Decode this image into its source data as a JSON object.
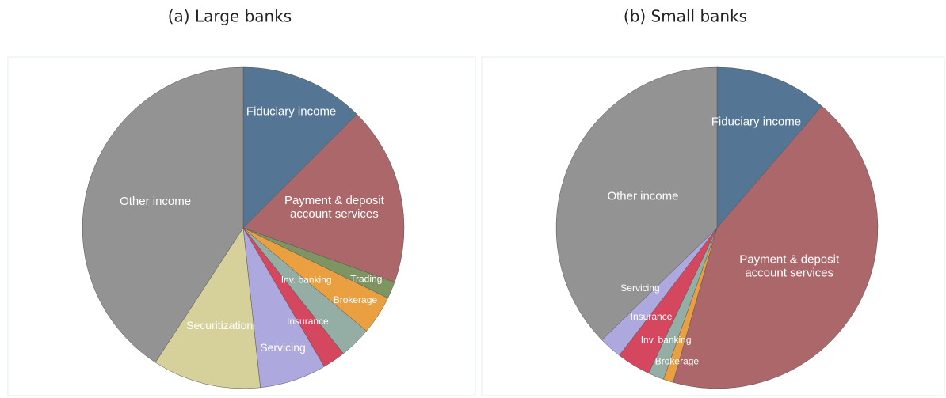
{
  "chart_data": [
    {
      "type": "pie",
      "title": "(a) Large banks",
      "categories": [
        "Fiduciary income",
        "Payment & deposit account services",
        "Trading",
        "Brokerage",
        "Inv. banking",
        "Insurance",
        "Servicing",
        "Securitization",
        "Other income"
      ],
      "values": [
        12.5,
        18,
        1.7,
        3.9,
        3.2,
        2.3,
        6.7,
        10.9,
        40.8
      ],
      "colors": [
        "#547593",
        "#ac676a",
        "#7e9561",
        "#eaa040",
        "#95aea5",
        "#d4475f",
        "#ada8dd",
        "#d6d19b",
        "#939393"
      ]
    },
    {
      "type": "pie",
      "title": "(b) Small banks",
      "categories": [
        "Fiduciary income",
        "Payment & deposit account services",
        "Brokerage",
        "Inv. banking",
        "Insurance",
        "Servicing",
        "Other income"
      ],
      "values": [
        11.3,
        43.1,
        1,
        1.6,
        3.4,
        2.3,
        37.3
      ],
      "colors": [
        "#547593",
        "#ac676a",
        "#eaa040",
        "#95aea5",
        "#d4475f",
        "#ada8dd",
        "#939393"
      ]
    }
  ]
}
